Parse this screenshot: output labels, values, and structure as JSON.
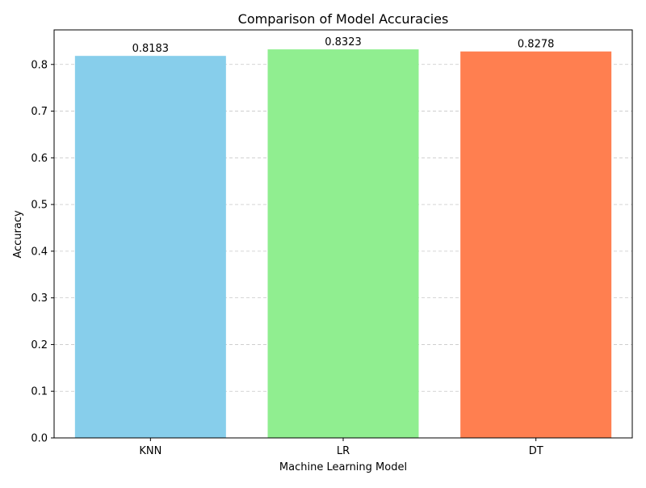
{
  "chart_data": {
    "type": "bar",
    "title": "Comparison of Model Accuracies",
    "xlabel": "Machine Learning Model",
    "ylabel": "Accuracy",
    "categories": [
      "KNN",
      "LR",
      "DT"
    ],
    "values": [
      0.8183,
      0.8323,
      0.8278
    ],
    "value_labels": [
      "0.8183",
      "0.8323",
      "0.8278"
    ],
    "colors": [
      "#87ceeb",
      "#90ee90",
      "#ff7f50"
    ],
    "ylim": [
      0,
      0.874
    ],
    "yticks": [
      0.0,
      0.1,
      0.2,
      0.3,
      0.4,
      0.5,
      0.6,
      0.7,
      0.8
    ],
    "ytick_labels": [
      "0.0",
      "0.1",
      "0.2",
      "0.3",
      "0.4",
      "0.5",
      "0.6",
      "0.7",
      "0.8"
    ],
    "grid": {
      "axis": "y",
      "style": "dashed",
      "color": "#c8c8c8"
    },
    "legend": "none"
  }
}
